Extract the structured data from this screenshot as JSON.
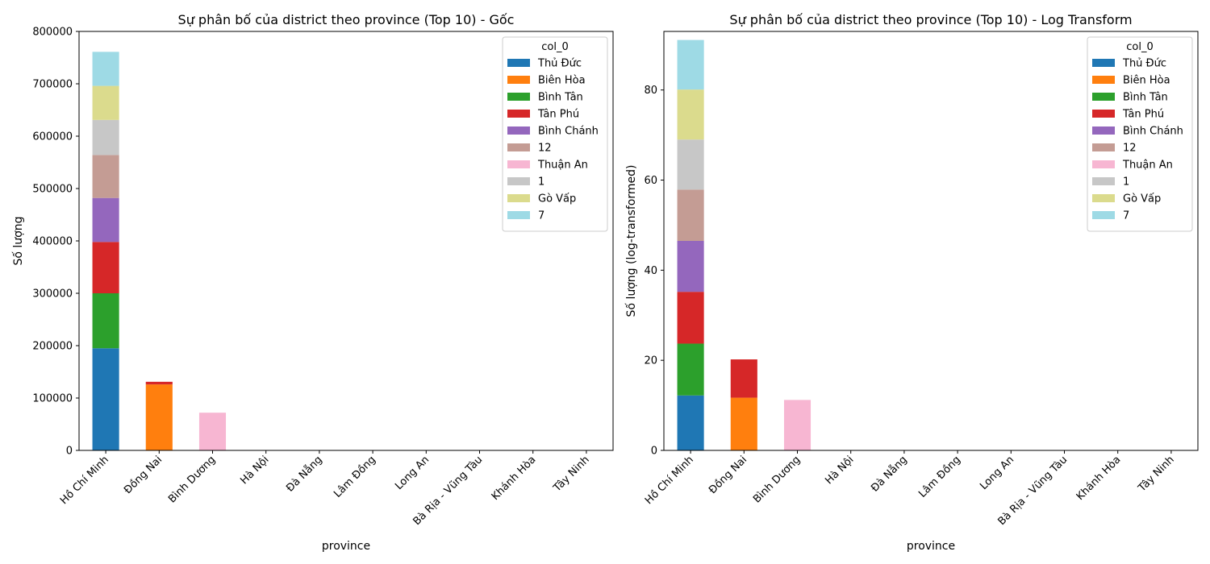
{
  "chart_data": [
    {
      "type": "bar",
      "stacked": true,
      "title": "Sự phân bố của district theo province (Top 10) - Gốc",
      "xlabel": "province",
      "ylabel": "Số lượng",
      "ylim": [
        0,
        800000
      ],
      "yticks": [
        0,
        100000,
        200000,
        300000,
        400000,
        500000,
        600000,
        700000,
        800000
      ],
      "legend_title": "col_0",
      "legend_position": "top-right",
      "grid": false,
      "categories": [
        "Hồ Chí Minh",
        "Đồng Nai",
        "Bình Dương",
        "Hà Nội",
        "Đà Nẵng",
        "Lâm Đồng",
        "Long An",
        "Bà Rịa - Vũng Tàu",
        "Khánh Hòa",
        "Tây Ninh"
      ],
      "series": [
        {
          "name": "Thủ Đức",
          "color": "#1f77b4",
          "values": [
            195000,
            0,
            0,
            0,
            0,
            0,
            0,
            0,
            0,
            0
          ]
        },
        {
          "name": "Biên Hòa",
          "color": "#ff7f0e",
          "values": [
            0,
            126000,
            0,
            0,
            0,
            0,
            0,
            0,
            0,
            0
          ]
        },
        {
          "name": "Bình Tân",
          "color": "#2ca02c",
          "values": [
            105000,
            0,
            0,
            0,
            0,
            0,
            0,
            0,
            0,
            0
          ]
        },
        {
          "name": "Tân Phú",
          "color": "#d62728",
          "values": [
            98000,
            5000,
            0,
            0,
            0,
            0,
            0,
            0,
            0,
            0
          ]
        },
        {
          "name": "Bình Chánh",
          "color": "#9467bd",
          "values": [
            84000,
            0,
            0,
            0,
            0,
            0,
            0,
            0,
            0,
            0
          ]
        },
        {
          "name": "12",
          "color": "#c49c94",
          "values": [
            82000,
            0,
            0,
            0,
            0,
            0,
            0,
            0,
            0,
            0
          ]
        },
        {
          "name": "Thuận An",
          "color": "#f7b6d2",
          "values": [
            0,
            0,
            72000,
            0,
            0,
            0,
            0,
            0,
            0,
            0
          ]
        },
        {
          "name": "1",
          "color": "#c7c7c7",
          "values": [
            67000,
            0,
            0,
            0,
            0,
            0,
            0,
            0,
            0,
            0
          ]
        },
        {
          "name": "Gò Vấp",
          "color": "#dbdb8d",
          "values": [
            65000,
            0,
            0,
            0,
            0,
            0,
            0,
            0,
            0,
            0
          ]
        },
        {
          "name": "7",
          "color": "#9edae5",
          "values": [
            65000,
            0,
            0,
            0,
            0,
            0,
            0,
            0,
            0,
            0
          ]
        }
      ]
    },
    {
      "type": "bar",
      "stacked": true,
      "title": "Sự phân bố của district theo province (Top 10) - Log Transform",
      "xlabel": "province",
      "ylabel": "Số lượng (log-transformed)",
      "ylim": [
        0,
        93
      ],
      "yticks": [
        0,
        20,
        40,
        60,
        80
      ],
      "legend_title": "col_0",
      "legend_position": "top-right",
      "grid": false,
      "categories": [
        "Hồ Chí Minh",
        "Đồng Nai",
        "Bình Dương",
        "Hà Nội",
        "Đà Nẵng",
        "Lâm Đồng",
        "Long An",
        "Bà Rịa - Vũng Tàu",
        "Khánh Hòa",
        "Tây Ninh"
      ],
      "series": [
        {
          "name": "Thủ Đức",
          "color": "#1f77b4",
          "values": [
            12.2,
            0,
            0,
            0,
            0,
            0,
            0,
            0,
            0,
            0
          ]
        },
        {
          "name": "Biên Hòa",
          "color": "#ff7f0e",
          "values": [
            0,
            11.7,
            0,
            0,
            0,
            0,
            0,
            0,
            0,
            0
          ]
        },
        {
          "name": "Bình Tân",
          "color": "#2ca02c",
          "values": [
            11.5,
            0,
            0,
            0,
            0,
            0,
            0,
            0,
            0,
            0
          ]
        },
        {
          "name": "Tân Phú",
          "color": "#d62728",
          "values": [
            11.5,
            8.5,
            0,
            0,
            0,
            0,
            0,
            0,
            0,
            0
          ]
        },
        {
          "name": "Bình Chánh",
          "color": "#9467bd",
          "values": [
            11.3,
            0,
            0,
            0,
            0,
            0,
            0,
            0,
            0,
            0
          ]
        },
        {
          "name": "12",
          "color": "#c49c94",
          "values": [
            11.4,
            0,
            0,
            0,
            0,
            0,
            0,
            0,
            0,
            0
          ]
        },
        {
          "name": "Thuận An",
          "color": "#f7b6d2",
          "values": [
            0,
            0,
            11.2,
            0,
            0,
            0,
            0,
            0,
            0,
            0
          ]
        },
        {
          "name": "1",
          "color": "#c7c7c7",
          "values": [
            11.1,
            0,
            0,
            0,
            0,
            0,
            0,
            0,
            0,
            0
          ]
        },
        {
          "name": "Gò Vấp",
          "color": "#dbdb8d",
          "values": [
            11.1,
            0,
            0,
            0,
            0,
            0,
            0,
            0,
            0,
            0
          ]
        },
        {
          "name": "7",
          "color": "#9edae5",
          "values": [
            11.0,
            0,
            0,
            0,
            0,
            0,
            0,
            0,
            0,
            0
          ]
        }
      ]
    }
  ]
}
